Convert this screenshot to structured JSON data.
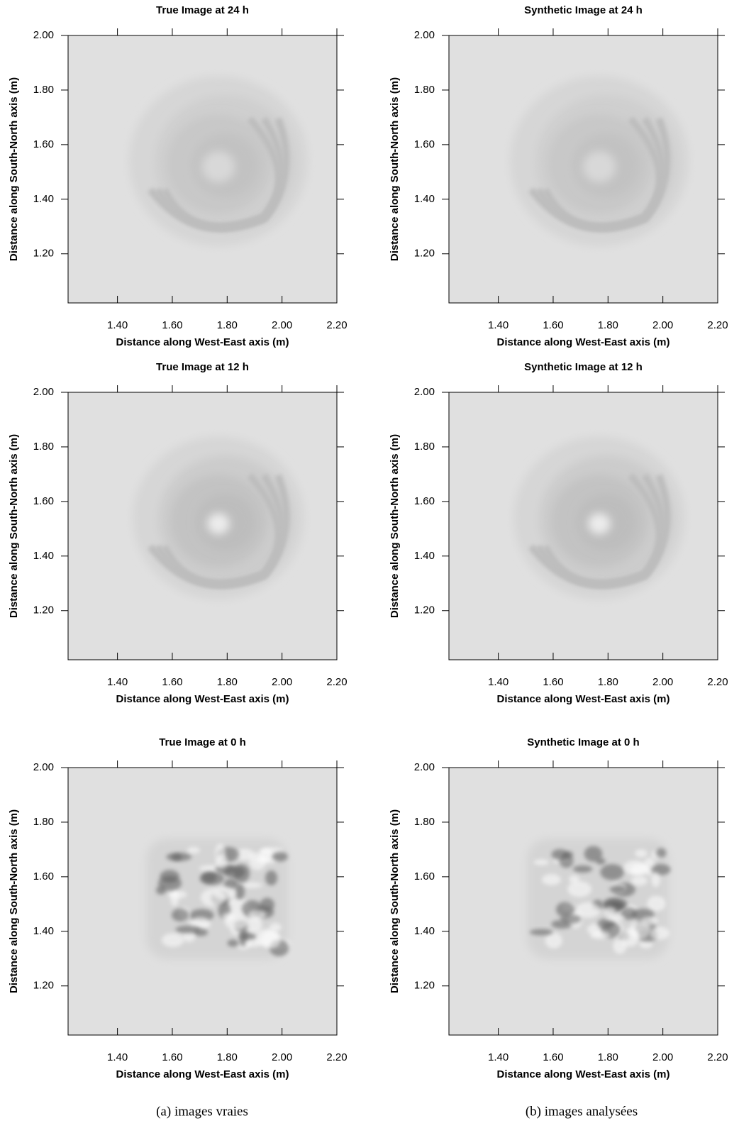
{
  "chart_data": [
    {
      "type": "contour",
      "title": "True Image at 24 h",
      "xlabel": "Distance along West-East axis (m)",
      "ylabel": "Distance along South-North axis (m)",
      "xlim": [
        1.22,
        2.2
      ],
      "ylim": [
        1.02,
        2.0
      ],
      "xticks": [
        {
          "value": 1.4,
          "label": "1.40"
        },
        {
          "value": 1.6,
          "label": "1.60"
        },
        {
          "value": 1.8,
          "label": "1.80"
        },
        {
          "value": 2.0,
          "label": "2.00"
        },
        {
          "value": 2.2,
          "label": "2.20"
        }
      ],
      "yticks": [
        {
          "value": 1.2,
          "label": "1.20"
        },
        {
          "value": 1.4,
          "label": "1.40"
        },
        {
          "value": 1.6,
          "label": "1.60"
        },
        {
          "value": 1.8,
          "label": "1.80"
        },
        {
          "value": 2.0,
          "label": "2.00"
        }
      ]
    },
    {
      "type": "contour",
      "title": "Synthetic Image at 24 h",
      "xlabel": "Distance along West-East axis (m)",
      "ylabel": "Distance along South-North axis (m)",
      "xlim": [
        1.22,
        2.2
      ],
      "ylim": [
        1.02,
        2.0
      ],
      "xticks": [
        {
          "value": 1.4,
          "label": "1.40"
        },
        {
          "value": 1.6,
          "label": "1.60"
        },
        {
          "value": 1.8,
          "label": "1.80"
        },
        {
          "value": 2.0,
          "label": "2.00"
        },
        {
          "value": 2.2,
          "label": "2.20"
        }
      ],
      "yticks": [
        {
          "value": 1.2,
          "label": "1.20"
        },
        {
          "value": 1.4,
          "label": "1.40"
        },
        {
          "value": 1.6,
          "label": "1.60"
        },
        {
          "value": 1.8,
          "label": "1.80"
        },
        {
          "value": 2.0,
          "label": "2.00"
        }
      ]
    },
    {
      "type": "contour",
      "title": "True Image at 12 h",
      "xlabel": "Distance along West-East axis (m)",
      "ylabel": "Distance along South-North axis (m)",
      "xlim": [
        1.22,
        2.2
      ],
      "ylim": [
        1.02,
        2.0
      ],
      "xticks": [
        {
          "value": 1.4,
          "label": "1.40"
        },
        {
          "value": 1.6,
          "label": "1.60"
        },
        {
          "value": 1.8,
          "label": "1.80"
        },
        {
          "value": 2.0,
          "label": "2.00"
        },
        {
          "value": 2.2,
          "label": "2.20"
        }
      ],
      "yticks": [
        {
          "value": 1.2,
          "label": "1.20"
        },
        {
          "value": 1.4,
          "label": "1.40"
        },
        {
          "value": 1.6,
          "label": "1.60"
        },
        {
          "value": 1.8,
          "label": "1.80"
        },
        {
          "value": 2.0,
          "label": "2.00"
        }
      ]
    },
    {
      "type": "contour",
      "title": "Synthetic Image at 12 h",
      "xlabel": "Distance along West-East axis (m)",
      "ylabel": "Distance along South-North axis (m)",
      "xlim": [
        1.22,
        2.2
      ],
      "ylim": [
        1.02,
        2.0
      ],
      "xticks": [
        {
          "value": 1.4,
          "label": "1.40"
        },
        {
          "value": 1.6,
          "label": "1.60"
        },
        {
          "value": 1.8,
          "label": "1.80"
        },
        {
          "value": 2.0,
          "label": "2.00"
        },
        {
          "value": 2.2,
          "label": "2.20"
        }
      ],
      "yticks": [
        {
          "value": 1.2,
          "label": "1.20"
        },
        {
          "value": 1.4,
          "label": "1.40"
        },
        {
          "value": 1.6,
          "label": "1.60"
        },
        {
          "value": 1.8,
          "label": "1.80"
        },
        {
          "value": 2.0,
          "label": "2.00"
        }
      ]
    },
    {
      "type": "contour",
      "title": "True Image at 0 h",
      "xlabel": "Distance along West-East axis (m)",
      "ylabel": "Distance along South-North axis (m)",
      "xlim": [
        1.22,
        2.2
      ],
      "ylim": [
        1.02,
        2.0
      ],
      "xticks": [
        {
          "value": 1.4,
          "label": "1.40"
        },
        {
          "value": 1.6,
          "label": "1.60"
        },
        {
          "value": 1.8,
          "label": "1.80"
        },
        {
          "value": 2.0,
          "label": "2.00"
        },
        {
          "value": 2.2,
          "label": "2.20"
        }
      ],
      "yticks": [
        {
          "value": 1.2,
          "label": "1.20"
        },
        {
          "value": 1.4,
          "label": "1.40"
        },
        {
          "value": 1.6,
          "label": "1.60"
        },
        {
          "value": 1.8,
          "label": "1.80"
        },
        {
          "value": 2.0,
          "label": "2.00"
        }
      ]
    },
    {
      "type": "contour",
      "title": "Synthetic Image at 0 h",
      "xlabel": "Distance along West-East axis (m)",
      "ylabel": "Distance along South-North axis (m)",
      "xlim": [
        1.22,
        2.2
      ],
      "ylim": [
        1.02,
        2.0
      ],
      "xticks": [
        {
          "value": 1.4,
          "label": "1.40"
        },
        {
          "value": 1.6,
          "label": "1.60"
        },
        {
          "value": 1.8,
          "label": "1.80"
        },
        {
          "value": 2.0,
          "label": "2.00"
        },
        {
          "value": 2.2,
          "label": "2.20"
        }
      ],
      "yticks": [
        {
          "value": 1.2,
          "label": "1.20"
        },
        {
          "value": 1.4,
          "label": "1.40"
        },
        {
          "value": 1.6,
          "label": "1.60"
        },
        {
          "value": 1.8,
          "label": "1.80"
        },
        {
          "value": 2.0,
          "label": "2.00"
        }
      ]
    }
  ],
  "captions": [
    "(a) images vraies",
    "(b) images analysées"
  ]
}
